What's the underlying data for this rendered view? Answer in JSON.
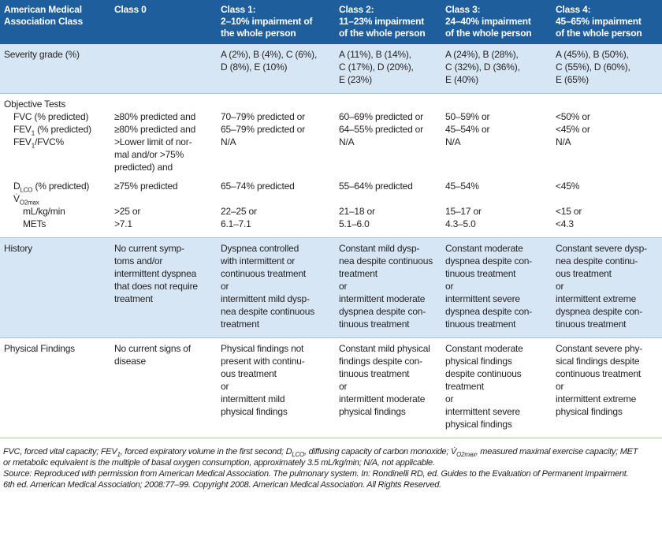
{
  "table": {
    "header": [
      [
        "American Medical",
        "Association Class"
      ],
      [
        "Class 0"
      ],
      [
        "Class 1:",
        "2–10% impairment of",
        "the whole person"
      ],
      [
        "Class 2:",
        "11–23% impairment",
        "of the whole person"
      ],
      [
        "Class 3:",
        "24–40% impairment",
        "of the whole person"
      ],
      [
        "Class 4:",
        "45–65% impairment",
        "of the whole person"
      ]
    ],
    "sections": [
      {
        "rows": [
          {
            "label": [
              "Severity grade (%)"
            ],
            "cells": [
              null,
              [
                "A (2%), B (4%), C (6%),",
                "D (8%), E (10%)"
              ],
              [
                "A (11%), B (14%),",
                "C (17%), D (20%),",
                "E (23%)"
              ],
              [
                "A (24%), B (28%),",
                "C (32%), D (36%),",
                "E (40%)"
              ],
              [
                "A (45%), B (50%),",
                "C (55%), D (60%),",
                "E (65%)"
              ]
            ]
          }
        ]
      },
      {
        "rows": [
          {
            "label": [
              "Objective Tests"
            ]
          },
          {
            "label": [
              [
                "FVC (% predicted)"
              ]
            ],
            "cells": [
              [
                "≥80% predicted and"
              ],
              [
                "70–79% predicted or"
              ],
              [
                "60–69% predicted or"
              ],
              [
                "50–59% or"
              ],
              [
                "<50% or"
              ]
            ]
          },
          {
            "label": [
              [
                "FEV",
                "1",
                " (% predicted)"
              ]
            ],
            "cells": [
              [
                "≥80% predicted and"
              ],
              [
                "65–79% predicted or"
              ],
              [
                "64–55% predicted or"
              ],
              [
                "45–54% or"
              ],
              [
                "<45% or"
              ]
            ]
          },
          {
            "label": [
              [
                "FEV",
                "1",
                "/FVC%"
              ]
            ],
            "cells": [
              [
                ">Lower limit of nor-",
                "mal and/or >75%",
                "predicted) and"
              ],
              [
                "N/A"
              ],
              [
                "N/A"
              ],
              [
                "N/A"
              ],
              [
                "N/A"
              ]
            ]
          },
          {
            "label": [
              [
                "D",
                "LCO",
                " (% predicted)"
              ]
            ],
            "cells": [
              [
                "≥75% predicted"
              ],
              [
                "65–74% predicted"
              ],
              [
                "55–64% predicted"
              ],
              [
                "45–54%"
              ],
              [
                "<45%"
              ]
            ]
          },
          {
            "label": [
              [
                "V̇",
                "O2max"
              ]
            ]
          },
          {
            "label": [
              "mL/kg/min",
              "METs"
            ],
            "cells": [
              [
                ">25 or",
                ">7.1"
              ],
              [
                "22–25 or",
                "6.1–7.1"
              ],
              [
                "21–18 or",
                "5.1–6.0"
              ],
              [
                "15–17 or",
                "4.3–5.0"
              ],
              [
                "<15 or",
                "<4.3"
              ]
            ]
          }
        ]
      },
      {
        "rows": [
          {
            "label": [
              "History"
            ],
            "cells": [
              [
                "No current symp-",
                "toms and/or",
                "intermittent dyspnea",
                "that does not require",
                "treatment"
              ],
              [
                "Dyspnea controlled",
                "with intermittent or",
                "continuous treatment",
                "or",
                "intermittent mild dysp-",
                "nea despite continuous",
                "treatment"
              ],
              [
                "Constant mild dysp-",
                "nea despite continuous",
                "treatment",
                "or",
                "intermittent moderate",
                "dyspnea despite con-",
                "tinuous treatment"
              ],
              [
                "Constant moderate",
                "dyspnea despite con-",
                "tinuous treatment",
                "or",
                "intermittent severe",
                "dyspnea despite con-",
                "tinuous treatment"
              ],
              [
                "Constant severe dysp-",
                "nea despite continu-",
                "ous treatment",
                "or",
                "intermittent extreme",
                "dyspnea despite con-",
                "tinuous treatment"
              ]
            ]
          }
        ]
      },
      {
        "rows": [
          {
            "label": [
              "Physical Findings"
            ],
            "cells": [
              [
                "No current signs of",
                "disease"
              ],
              [
                "Physical findings not",
                "present with continu-",
                "ous treatment",
                "or",
                "intermittent mild",
                "physical findings"
              ],
              [
                "Constant mild physical",
                "findings despite con-",
                "tinuous treatment",
                "or",
                "intermittent moderate",
                "physical findings"
              ],
              [
                "Constant moderate",
                "physical findings",
                "despite continuous",
                "treatment",
                "or",
                "intermittent severe",
                "physical findings"
              ],
              [
                "Constant severe phy-",
                "sical findings despite",
                "continuous treatment",
                "or",
                "intermittent extreme",
                "physical findings"
              ]
            ]
          }
        ]
      }
    ]
  },
  "footnote": [
    [
      "FVC, forced vital capacity; FEV",
      "1",
      ", forced expiratory volume in the first second; D",
      "LCO",
      ", diffusing capacity of carbon monoxide; V̇",
      "O2max",
      ", measured maximal exercise capacity; MET"
    ],
    [
      "or metabolic equivalent is the multiple of basal oxygen consumption, approximately 3.5 mL/kg/min; N/A, not applicable."
    ],
    [
      "Source: Reproduced with permission from American Medical Association. The pulmonary system. In: Rondinelli RD, ed. Guides to the Evaluation of Permanent Impairment."
    ],
    [
      "6th ed. American Medical Association; 2008:77–99. Copyright 2008. American Medical Association. All Rights Reserved."
    ]
  ]
}
